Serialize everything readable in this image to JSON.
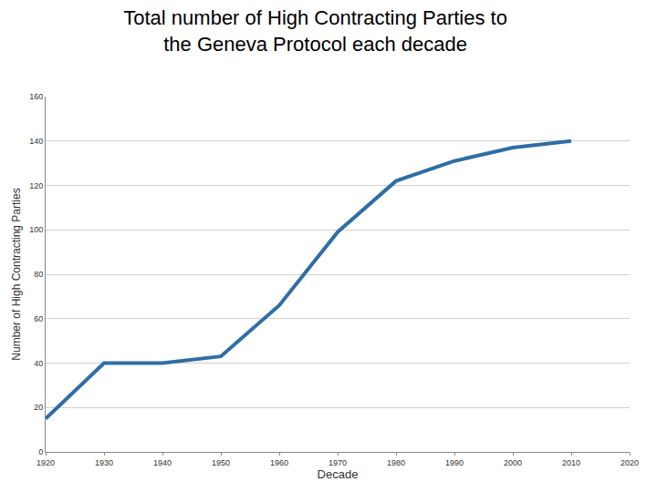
{
  "chart_data": {
    "type": "line",
    "title": [
      "Total number of High Contracting Parties to",
      "the Geneva Protocol each decade"
    ],
    "x_label": "Decade",
    "y_label": "Number of High Contracting Parties",
    "x": [
      1920,
      1930,
      1940,
      1950,
      1960,
      1970,
      1980,
      1990,
      2000,
      2010
    ],
    "values": [
      15,
      40,
      40,
      43,
      66,
      99,
      122,
      131,
      137,
      140
    ],
    "color": "#2f6ea5",
    "xlim": [
      1920,
      2020
    ],
    "xticks": [
      1920,
      1930,
      1940,
      1950,
      1960,
      1970,
      1980,
      1990,
      2000,
      2010,
      2020
    ],
    "ylim": [
      0,
      160
    ],
    "yticks": [
      0,
      20,
      40,
      60,
      80,
      100,
      120,
      140,
      160
    ],
    "grid": true
  }
}
